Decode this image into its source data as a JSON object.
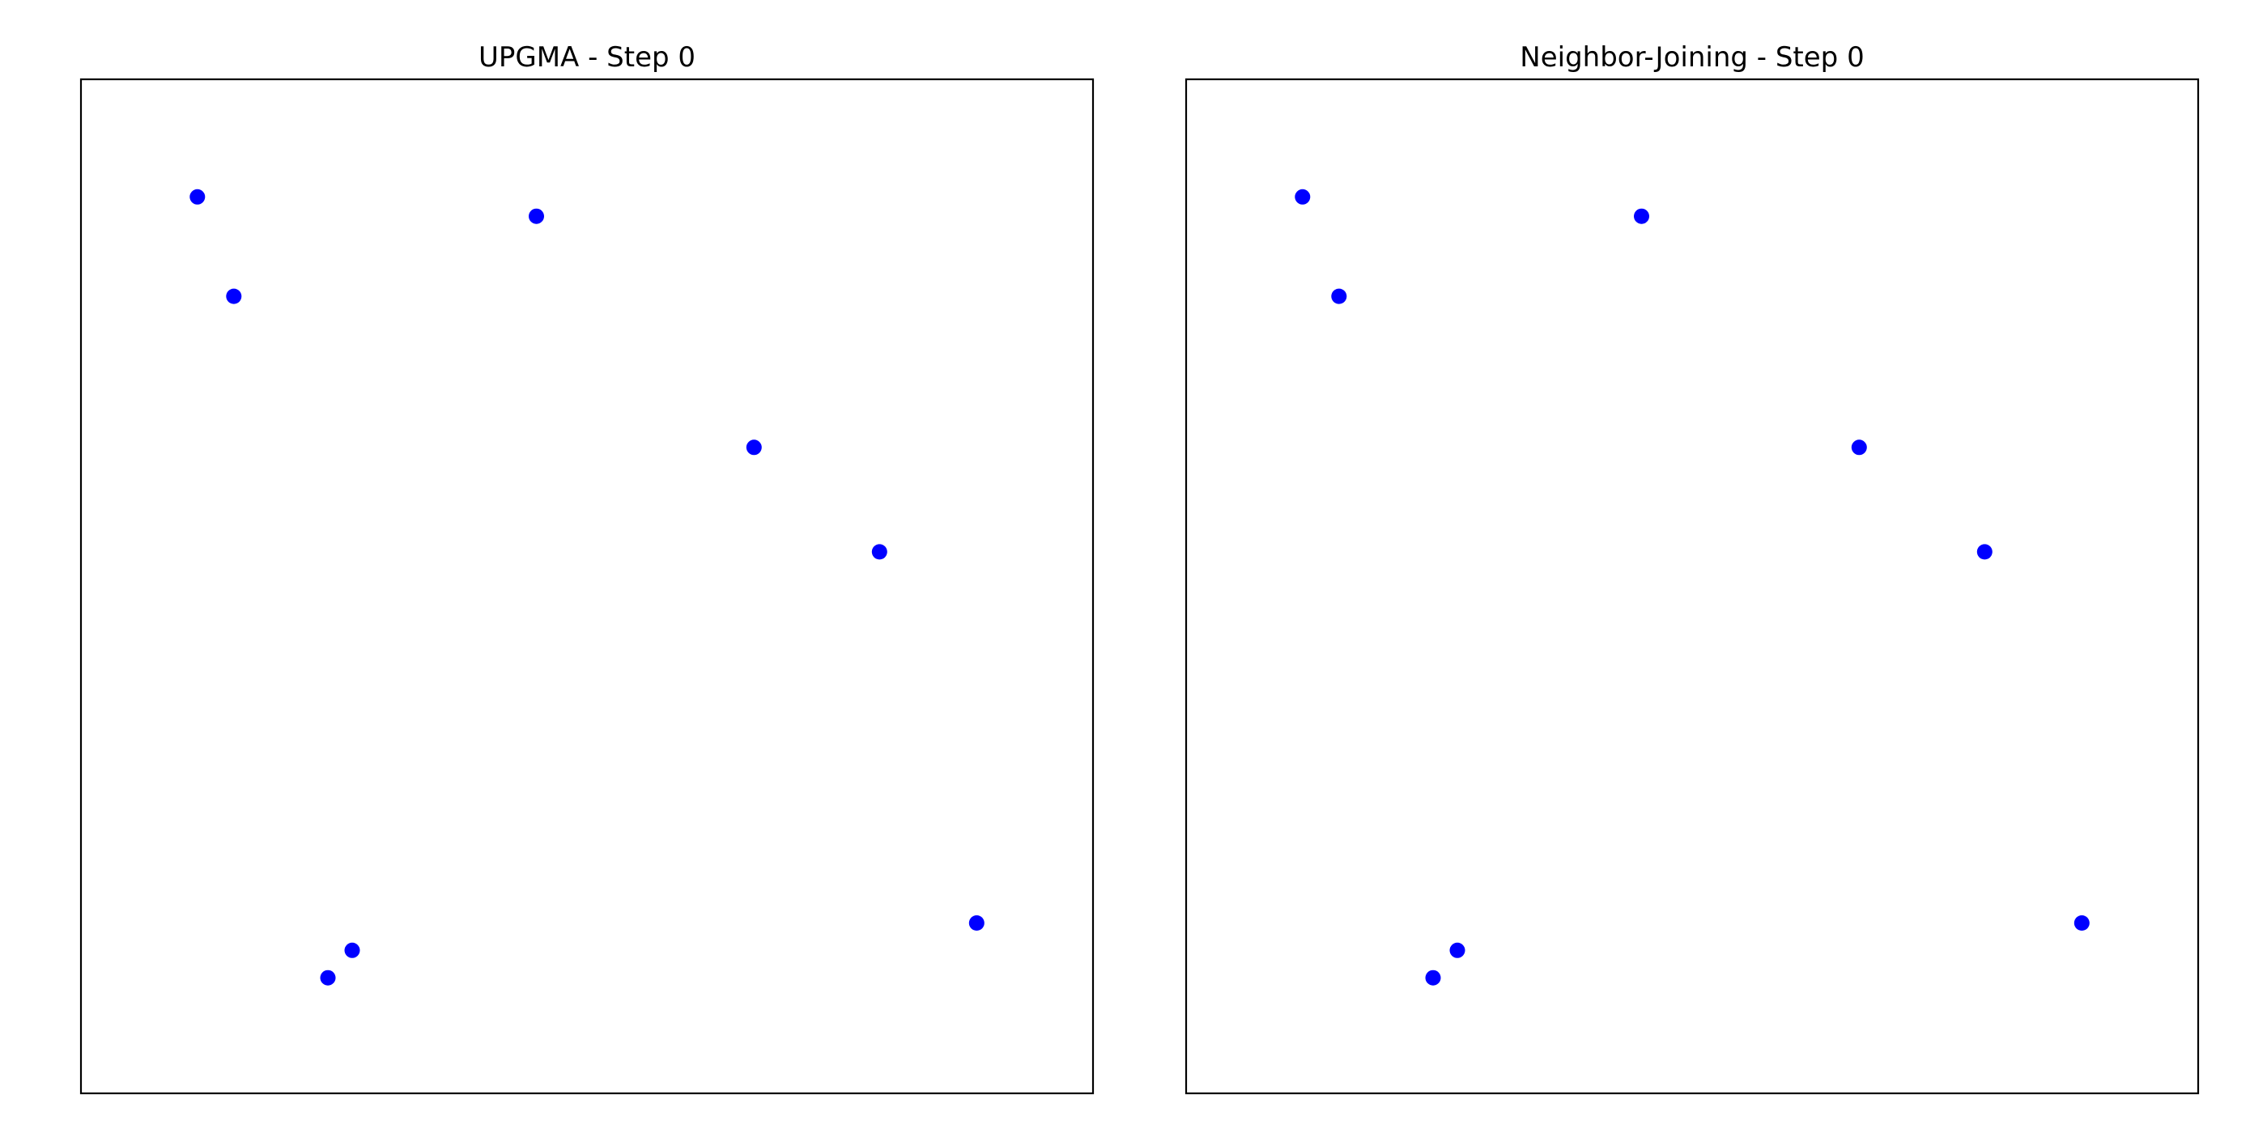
{
  "colors": {
    "point": "#0000ff",
    "frame": "#000000",
    "background": "#ffffff"
  },
  "chart_data": [
    {
      "type": "scatter",
      "title": "UPGMA - Step 0",
      "xlabel": "",
      "ylabel": "",
      "xlim": [
        0,
        1
      ],
      "ylim": [
        0,
        1
      ],
      "grid": false,
      "ticks": false,
      "points": [
        {
          "x": 0.115,
          "y": 0.884
        },
        {
          "x": 0.151,
          "y": 0.786
        },
        {
          "x": 0.45,
          "y": 0.865
        },
        {
          "x": 0.665,
          "y": 0.637
        },
        {
          "x": 0.789,
          "y": 0.534
        },
        {
          "x": 0.885,
          "y": 0.168
        },
        {
          "x": 0.268,
          "y": 0.141
        },
        {
          "x": 0.244,
          "y": 0.114
        }
      ]
    },
    {
      "type": "scatter",
      "title": "Neighbor-Joining - Step 0",
      "xlabel": "",
      "ylabel": "",
      "xlim": [
        0,
        1
      ],
      "ylim": [
        0,
        1
      ],
      "grid": false,
      "ticks": false,
      "points": [
        {
          "x": 0.115,
          "y": 0.884
        },
        {
          "x": 0.151,
          "y": 0.786
        },
        {
          "x": 0.45,
          "y": 0.865
        },
        {
          "x": 0.665,
          "y": 0.637
        },
        {
          "x": 0.789,
          "y": 0.534
        },
        {
          "x": 0.885,
          "y": 0.168
        },
        {
          "x": 0.268,
          "y": 0.141
        },
        {
          "x": 0.244,
          "y": 0.114
        }
      ]
    }
  ]
}
